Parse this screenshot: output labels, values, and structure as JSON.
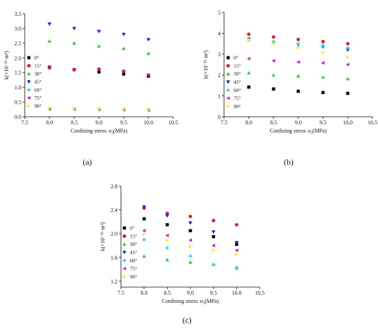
{
  "panel_labels": [
    "(a)",
    "(b)",
    "(c)"
  ],
  "angle_colors": {
    "0°": "#000000",
    "15°": "#e41a1c",
    "30°": "#33cc33",
    "45°": "#1a1adb",
    "60°": "#22e0f0",
    "75°": "#cc22cc",
    "90°": "#f2f226"
  },
  "angle_markers": {
    "0°": "square",
    "15°": "circle",
    "30°": "triangle-up",
    "45°": "triangle-down",
    "60°": "diamond",
    "75°": "triangle-left",
    "90°": "triangle-right"
  },
  "chart_data": [
    {
      "type": "scatter",
      "panel": "(a)",
      "xlabel_prefix": "Confining stress",
      "xlabel_symbol": "σ",
      "xlabel_sub": "3",
      "xlabel_unit": "(MPa)",
      "ylabel": "k(×10⁻¹⁶ m²)",
      "xlim": [
        7.5,
        10.5
      ],
      "ylim": [
        0.0,
        3.5
      ],
      "xticks": [
        "7.5",
        "8.0",
        "8.5",
        "9.0",
        "9.5",
        "10.0",
        "10.5"
      ],
      "yticks": [
        "0.0",
        "0.5",
        "1.0",
        "1.5",
        "2.0",
        "2.5",
        "3.0",
        "3.5"
      ],
      "x": [
        8.0,
        8.5,
        9.0,
        9.5,
        10.0
      ],
      "series": [
        {
          "name": "0°",
          "values": [
            1.68,
            1.6,
            1.52,
            1.45,
            1.38
          ]
        },
        {
          "name": "15°",
          "values": [
            1.66,
            1.6,
            1.62,
            1.55,
            1.42
          ]
        },
        {
          "name": "30°",
          "values": [
            2.57,
            2.5,
            2.4,
            2.32,
            2.15
          ]
        },
        {
          "name": "45°",
          "values": [
            3.15,
            3.0,
            2.9,
            2.8,
            2.62
          ]
        },
        {
          "name": "60°",
          "values": [
            0.28,
            0.27,
            0.26,
            0.25,
            0.24
          ]
        },
        {
          "name": "75°",
          "values": [
            0.27,
            0.26,
            0.25,
            0.24,
            0.23
          ]
        },
        {
          "name": "90°",
          "values": [
            0.3,
            0.28,
            0.27,
            0.26,
            0.25
          ]
        }
      ]
    },
    {
      "type": "scatter",
      "panel": "(b)",
      "xlabel_prefix": "Confining stress",
      "xlabel_symbol": "σ",
      "xlabel_sub": "3",
      "xlabel_unit": "(MPa)",
      "ylabel": "k(×10⁻¹⁶ m²)",
      "xlim": [
        7.5,
        10.5
      ],
      "ylim": [
        0,
        5
      ],
      "xticks": [
        "7.5",
        "8.0",
        "8.5",
        "9.0",
        "9.5",
        "10.0",
        "10.5"
      ],
      "yticks": [
        "0",
        "1",
        "2",
        "3",
        "4",
        "5"
      ],
      "x": [
        8.0,
        8.5,
        9.0,
        9.5,
        10.0
      ],
      "series": [
        {
          "name": "0°",
          "values": [
            1.42,
            1.33,
            1.22,
            1.16,
            1.12
          ]
        },
        {
          "name": "15°",
          "values": [
            3.95,
            3.82,
            3.7,
            3.6,
            3.5
          ]
        },
        {
          "name": "30°",
          "values": [
            2.1,
            2.0,
            1.95,
            1.9,
            1.82
          ]
        },
        {
          "name": "45°",
          "values": [
            3.72,
            3.55,
            3.45,
            3.35,
            3.2
          ]
        },
        {
          "name": "60°",
          "values": [
            3.68,
            3.6,
            3.5,
            3.42,
            3.3
          ]
        },
        {
          "name": "75°",
          "values": [
            2.78,
            2.68,
            2.62,
            2.58,
            2.5
          ]
        },
        {
          "name": "90°",
          "values": [
            3.7,
            3.5,
            3.3,
            3.08,
            2.85
          ]
        }
      ]
    },
    {
      "type": "scatter",
      "panel": "(c)",
      "xlabel_prefix": "Confining stress",
      "xlabel_symbol": "σ",
      "xlabel_sub": "3",
      "xlabel_unit": "(MPa)",
      "ylabel": "k(×10⁻¹⁶ m²)",
      "xlim": [
        7.5,
        10.5
      ],
      "ylim": [
        1.1,
        2.8
      ],
      "xticks": [
        "7.5",
        "8.0",
        "8.5",
        "9.0",
        "9.5",
        "10.0",
        "10.5"
      ],
      "yticks": [
        "1.2",
        "1.6",
        "2.0",
        "2.4",
        "2.8"
      ],
      "x": [
        8.0,
        8.5,
        9.0,
        9.5,
        10.0
      ],
      "series": [
        {
          "name": "0°",
          "values": [
            2.25,
            2.15,
            2.05,
            1.95,
            1.82
          ]
        },
        {
          "name": "15°",
          "values": [
            2.43,
            2.34,
            2.29,
            2.22,
            2.15
          ]
        },
        {
          "name": "30°",
          "values": [
            1.62,
            1.56,
            1.52,
            1.48,
            1.42
          ]
        },
        {
          "name": "45°",
          "values": [
            2.45,
            2.3,
            2.18,
            2.03,
            1.85
          ]
        },
        {
          "name": "60°",
          "values": [
            1.9,
            1.76,
            1.62,
            1.48,
            1.43
          ]
        },
        {
          "name": "75°",
          "values": [
            2.05,
            1.97,
            1.89,
            1.8,
            1.72
          ]
        },
        {
          "name": "90°",
          "values": [
            1.99,
            1.88,
            1.78,
            1.72,
            1.65
          ]
        }
      ]
    }
  ]
}
